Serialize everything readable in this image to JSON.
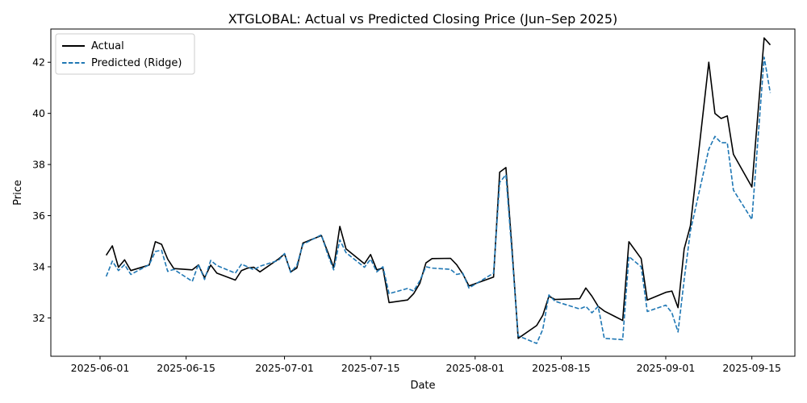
{
  "chart_data": {
    "type": "line",
    "title": "XTGLOBAL: Actual vs Predicted Closing Price (Jun–Sep 2025)",
    "xlabel": "Date",
    "ylabel": "Price",
    "xlim": [
      "2025-05-24",
      "2025-09-22"
    ],
    "ylim": [
      30.5,
      43.3
    ],
    "x_ticks": [
      "2025-06-01",
      "2025-06-15",
      "2025-07-01",
      "2025-07-15",
      "2025-08-01",
      "2025-08-15",
      "2025-09-01",
      "2025-09-15"
    ],
    "y_ticks": [
      32,
      34,
      36,
      38,
      40,
      42
    ],
    "grid": false,
    "legend": {
      "position": "top-left"
    },
    "series": [
      {
        "name": "Actual",
        "color": "#000000",
        "style": "solid",
        "points": [
          [
            "2025-06-02",
            34.45
          ],
          [
            "2025-06-03",
            34.82
          ],
          [
            "2025-06-04",
            33.98
          ],
          [
            "2025-06-05",
            34.27
          ],
          [
            "2025-06-06",
            33.85
          ],
          [
            "2025-06-09",
            34.07
          ],
          [
            "2025-06-10",
            34.98
          ],
          [
            "2025-06-11",
            34.88
          ],
          [
            "2025-06-12",
            34.3
          ],
          [
            "2025-06-13",
            33.93
          ],
          [
            "2025-06-16",
            33.88
          ],
          [
            "2025-06-17",
            34.07
          ],
          [
            "2025-06-18",
            33.57
          ],
          [
            "2025-06-19",
            34.07
          ],
          [
            "2025-06-20",
            33.75
          ],
          [
            "2025-06-23",
            33.48
          ],
          [
            "2025-06-24",
            33.85
          ],
          [
            "2025-06-25",
            33.95
          ],
          [
            "2025-06-26",
            33.98
          ],
          [
            "2025-06-27",
            33.8
          ],
          [
            "2025-06-30",
            34.3
          ],
          [
            "2025-07-01",
            34.5
          ],
          [
            "2025-07-02",
            33.8
          ],
          [
            "2025-07-03",
            33.95
          ],
          [
            "2025-07-04",
            34.93
          ],
          [
            "2025-07-07",
            35.22
          ],
          [
            "2025-07-08",
            34.6
          ],
          [
            "2025-07-09",
            33.97
          ],
          [
            "2025-07-10",
            35.58
          ],
          [
            "2025-07-11",
            34.7
          ],
          [
            "2025-07-14",
            34.12
          ],
          [
            "2025-07-15",
            34.48
          ],
          [
            "2025-07-16",
            33.88
          ],
          [
            "2025-07-17",
            33.95
          ],
          [
            "2025-07-18",
            32.6
          ],
          [
            "2025-07-21",
            32.7
          ],
          [
            "2025-07-22",
            32.95
          ],
          [
            "2025-07-23",
            33.35
          ],
          [
            "2025-07-24",
            34.15
          ],
          [
            "2025-07-25",
            34.32
          ],
          [
            "2025-07-28",
            34.33
          ],
          [
            "2025-07-29",
            34.08
          ],
          [
            "2025-07-30",
            33.72
          ],
          [
            "2025-07-31",
            33.25
          ],
          [
            "2025-08-04",
            33.6
          ],
          [
            "2025-08-05",
            37.7
          ],
          [
            "2025-08-06",
            37.88
          ],
          [
            "2025-08-07",
            34.7
          ],
          [
            "2025-08-08",
            31.2
          ],
          [
            "2025-08-11",
            31.7
          ],
          [
            "2025-08-12",
            32.1
          ],
          [
            "2025-08-13",
            32.85
          ],
          [
            "2025-08-14",
            32.72
          ],
          [
            "2025-08-18",
            32.75
          ],
          [
            "2025-08-19",
            33.17
          ],
          [
            "2025-08-20",
            32.85
          ],
          [
            "2025-08-21",
            32.45
          ],
          [
            "2025-08-22",
            32.27
          ],
          [
            "2025-08-25",
            31.9
          ],
          [
            "2025-08-26",
            34.98
          ],
          [
            "2025-08-28",
            34.32
          ],
          [
            "2025-08-29",
            32.7
          ],
          [
            "2025-09-01",
            33.0
          ],
          [
            "2025-09-02",
            33.05
          ],
          [
            "2025-09-03",
            32.4
          ],
          [
            "2025-09-04",
            34.7
          ],
          [
            "2025-09-05",
            35.6
          ],
          [
            "2025-09-08",
            42.0
          ],
          [
            "2025-09-09",
            40.0
          ],
          [
            "2025-09-10",
            39.8
          ],
          [
            "2025-09-11",
            39.9
          ],
          [
            "2025-09-12",
            38.4
          ],
          [
            "2025-09-15",
            37.12
          ],
          [
            "2025-09-17",
            42.95
          ],
          [
            "2025-09-18",
            42.68
          ]
        ]
      },
      {
        "name": "Predicted (Ridge)",
        "color": "#1f77b4",
        "style": "dashed",
        "points": [
          [
            "2025-06-02",
            33.62
          ],
          [
            "2025-06-03",
            34.22
          ],
          [
            "2025-06-04",
            33.85
          ],
          [
            "2025-06-05",
            34.08
          ],
          [
            "2025-06-06",
            33.7
          ],
          [
            "2025-06-09",
            34.08
          ],
          [
            "2025-06-10",
            34.6
          ],
          [
            "2025-06-11",
            34.65
          ],
          [
            "2025-06-12",
            33.82
          ],
          [
            "2025-06-13",
            33.9
          ],
          [
            "2025-06-16",
            33.43
          ],
          [
            "2025-06-17",
            34.1
          ],
          [
            "2025-06-18",
            33.5
          ],
          [
            "2025-06-19",
            34.25
          ],
          [
            "2025-06-20",
            34.05
          ],
          [
            "2025-06-23",
            33.75
          ],
          [
            "2025-06-24",
            34.1
          ],
          [
            "2025-06-25",
            34.0
          ],
          [
            "2025-06-26",
            33.88
          ],
          [
            "2025-06-27",
            34.02
          ],
          [
            "2025-06-30",
            34.25
          ],
          [
            "2025-07-01",
            34.52
          ],
          [
            "2025-07-02",
            33.78
          ],
          [
            "2025-07-03",
            34.05
          ],
          [
            "2025-07-04",
            34.88
          ],
          [
            "2025-07-07",
            35.25
          ],
          [
            "2025-07-08",
            34.5
          ],
          [
            "2025-07-09",
            33.88
          ],
          [
            "2025-07-10",
            35.05
          ],
          [
            "2025-07-11",
            34.55
          ],
          [
            "2025-07-14",
            33.98
          ],
          [
            "2025-07-15",
            34.3
          ],
          [
            "2025-07-16",
            33.8
          ],
          [
            "2025-07-17",
            34.0
          ],
          [
            "2025-07-18",
            32.95
          ],
          [
            "2025-07-21",
            33.15
          ],
          [
            "2025-07-22",
            33.05
          ],
          [
            "2025-07-23",
            33.45
          ],
          [
            "2025-07-24",
            34.0
          ],
          [
            "2025-07-25",
            33.95
          ],
          [
            "2025-07-28",
            33.9
          ],
          [
            "2025-07-29",
            33.7
          ],
          [
            "2025-07-30",
            33.75
          ],
          [
            "2025-07-31",
            33.17
          ],
          [
            "2025-08-04",
            33.75
          ],
          [
            "2025-08-05",
            37.3
          ],
          [
            "2025-08-06",
            37.6
          ],
          [
            "2025-08-07",
            34.5
          ],
          [
            "2025-08-08",
            31.3
          ],
          [
            "2025-08-11",
            31.0
          ],
          [
            "2025-08-12",
            31.55
          ],
          [
            "2025-08-13",
            32.9
          ],
          [
            "2025-08-14",
            32.65
          ],
          [
            "2025-08-18",
            32.35
          ],
          [
            "2025-08-19",
            32.45
          ],
          [
            "2025-08-20",
            32.2
          ],
          [
            "2025-08-21",
            32.45
          ],
          [
            "2025-08-22",
            31.2
          ],
          [
            "2025-08-25",
            31.15
          ],
          [
            "2025-08-26",
            34.4
          ],
          [
            "2025-08-28",
            34.0
          ],
          [
            "2025-08-29",
            32.25
          ],
          [
            "2025-09-01",
            32.5
          ],
          [
            "2025-09-02",
            32.2
          ],
          [
            "2025-09-03",
            31.45
          ],
          [
            "2025-09-04",
            33.5
          ],
          [
            "2025-09-05",
            35.4
          ],
          [
            "2025-09-08",
            38.6
          ],
          [
            "2025-09-09",
            39.1
          ],
          [
            "2025-09-10",
            38.85
          ],
          [
            "2025-09-11",
            38.85
          ],
          [
            "2025-09-12",
            37.0
          ],
          [
            "2025-09-15",
            35.85
          ],
          [
            "2025-09-17",
            42.2
          ],
          [
            "2025-09-18",
            40.8
          ]
        ]
      }
    ]
  }
}
